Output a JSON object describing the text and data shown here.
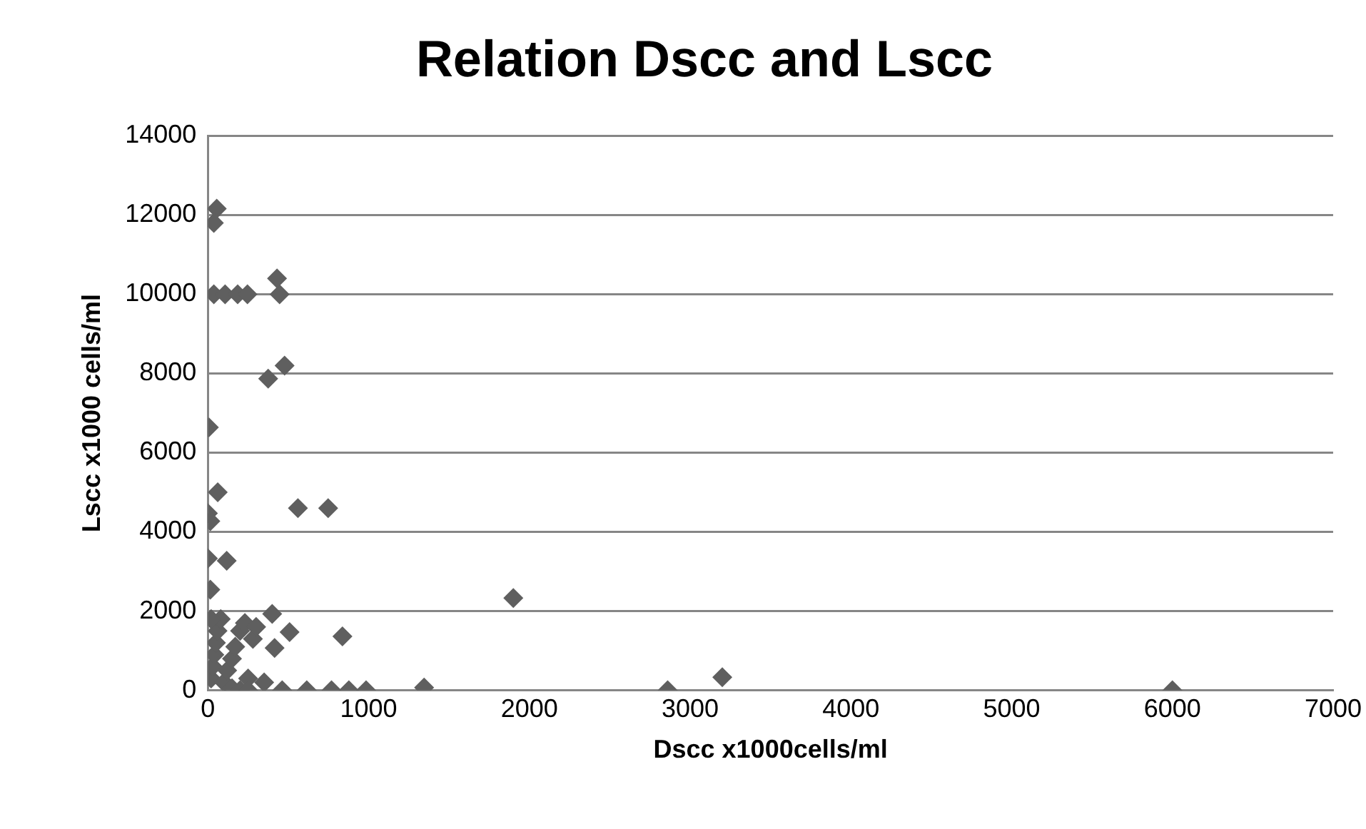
{
  "chart_data": {
    "type": "scatter",
    "title": "Relation Dscc and Lscc",
    "xlabel": "Dscc x1000cells/ml",
    "ylabel": "Lscc x1000 cells/ml",
    "xlim": [
      0,
      7000
    ],
    "xticks": [
      0,
      1000,
      2000,
      3000,
      4000,
      5000,
      6000,
      7000
    ],
    "ylim": [
      0,
      14000
    ],
    "yticks": [
      0,
      2000,
      4000,
      6000,
      8000,
      10000,
      12000,
      14000
    ],
    "grid": "y",
    "legend": false,
    "marker": "diamond",
    "series": [
      {
        "color": "#5f5f5f",
        "x": [
          55,
          37,
          37,
          107,
          185,
          246,
          446,
          430,
          477,
          375,
          6,
          61,
          0,
          15,
          560,
          748,
          0,
          117,
          15,
          1900,
          400,
          508,
          415,
          837,
          462,
          615,
          769,
          877,
          984,
          1345,
          2860,
          3200,
          6000,
          20,
          30,
          40,
          50,
          60,
          80,
          100,
          120,
          150,
          170,
          200,
          230,
          250,
          280,
          300,
          350,
          20,
          150,
          200,
          250
        ],
        "values": [
          12160,
          11800,
          10000,
          10000,
          10000,
          10000,
          10000,
          10400,
          8200,
          7870,
          6640,
          5000,
          4470,
          4270,
          4600,
          4600,
          3330,
          3270,
          2540,
          2330,
          1930,
          1470,
          1070,
          1360,
          0,
          0,
          0,
          0,
          0,
          70,
          0,
          330,
          0,
          300,
          600,
          900,
          1200,
          1500,
          1800,
          200,
          500,
          800,
          1100,
          1500,
          1700,
          300,
          1300,
          1600,
          200,
          1800,
          50,
          0,
          0
        ]
      }
    ]
  }
}
